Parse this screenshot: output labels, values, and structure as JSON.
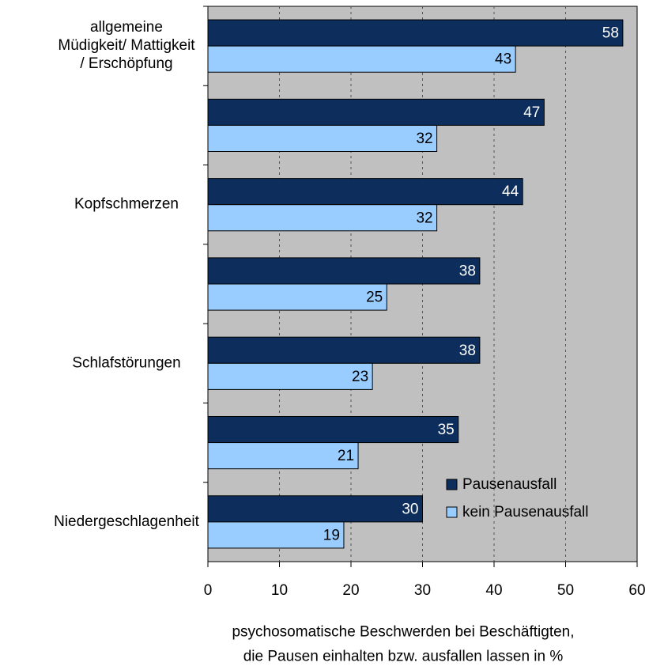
{
  "chart_data": {
    "type": "bar",
    "orientation": "horizontal",
    "categories": [
      "allgemeine\nMüdigkeit/ Mattigkeit\n/ Erschöpfung",
      null,
      "Kopfschmerzen",
      null,
      "Schlafstörungen",
      null,
      "Niedergeschlagenheit"
    ],
    "series": [
      {
        "name": "Pausenausfall",
        "color": "#0d2e5c",
        "label_color": "#ffffff",
        "values": [
          58,
          47,
          44,
          38,
          38,
          35,
          30
        ]
      },
      {
        "name": "kein Pausenausfall",
        "color": "#99ccff",
        "label_color": "#000000",
        "values": [
          43,
          32,
          32,
          25,
          23,
          21,
          19
        ]
      }
    ],
    "xlim": [
      0,
      60
    ],
    "xticks": [
      0,
      10,
      20,
      30,
      40,
      50,
      60
    ],
    "grid": true,
    "x_label": "psychosomatische Beschwerden bei Beschäftigten,\ndie Pausen einhalten bzw. ausfallen lassen in %",
    "background": "#c0c0c0",
    "legend": "lower right"
  }
}
